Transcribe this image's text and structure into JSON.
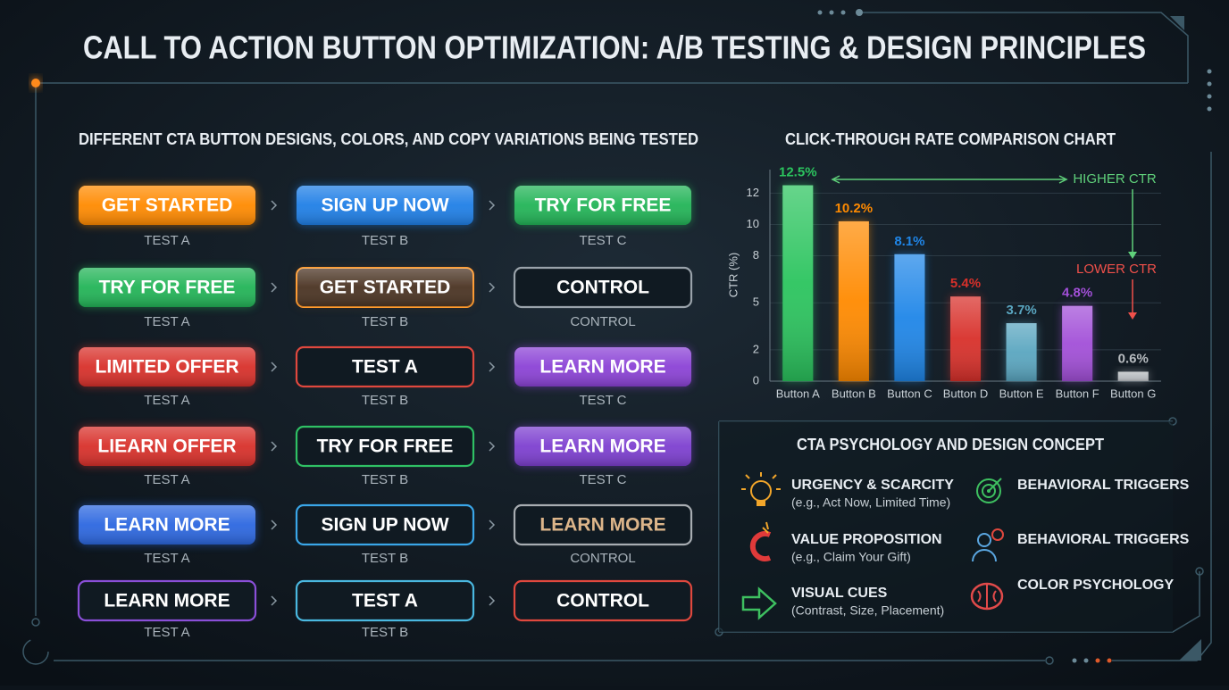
{
  "title": "CALL TO ACTION BUTTON OPTIMIZATION: A/B TESTING & DESIGN PRINCIPLES",
  "ab_tests": {
    "heading": "DIFFERENT CTA BUTTON DESIGNS, COLORS, AND COPY VARIATIONS BEING TESTED",
    "rows": [
      [
        {
          "label": "GET STARTED",
          "caption": "TEST A",
          "variant": "fill",
          "color": "#ff8a00"
        },
        {
          "label": "SIGN UP NOW",
          "caption": "TEST B",
          "variant": "fill",
          "color": "#1f7fe6"
        },
        {
          "label": "TRY FOR FREE",
          "caption": "TEST C",
          "variant": "fill",
          "color": "#22b457"
        }
      ],
      [
        {
          "label": "TRY FOR FREE",
          "caption": "TEST A",
          "variant": "fill",
          "color": "#22b457"
        },
        {
          "label": "GET STARTED",
          "caption": "TEST B",
          "variant": "fill",
          "color": "#4a3322",
          "border": "#ff9a2e"
        },
        {
          "label": "CONTROL",
          "caption": "CONTROL",
          "variant": "outline",
          "color": "#9aa3ab"
        }
      ],
      [
        {
          "label": "LIMITED OFFER",
          "caption": "TEST A",
          "variant": "fill",
          "color": "#d8302a"
        },
        {
          "label": "TEST A",
          "caption": "TEST B",
          "variant": "outline",
          "color": "#e0483e"
        },
        {
          "label": "LEARN MORE",
          "caption": "TEST C",
          "variant": "fill",
          "color": "#8b42d6"
        }
      ],
      [
        {
          "label": "LIEARN OFFER",
          "caption": "TEST A",
          "variant": "fill",
          "color": "#d8302a"
        },
        {
          "label": "TRY FOR FREE",
          "caption": "TEST B",
          "variant": "outline",
          "color": "#2fc064"
        },
        {
          "label": "LEARN MORE",
          "caption": "TEST C",
          "variant": "fill",
          "color": "#7d3fd0"
        }
      ],
      [
        {
          "label": "LEARN MORE",
          "caption": "TEST A",
          "variant": "fill",
          "color": "#2c67e0"
        },
        {
          "label": "SIGN UP NOW",
          "caption": "TEST B",
          "variant": "outline",
          "color": "#3aa6e8"
        },
        {
          "label": "LEARN MORE",
          "caption": "CONTROL",
          "variant": "outline",
          "color": "#a8adb2",
          "text_color": "#dcb58a"
        }
      ],
      [
        {
          "label": "LEARN MORE",
          "caption": "TEST A",
          "variant": "outline",
          "color": "#8a4fd8"
        },
        {
          "label": "TEST A",
          "caption": "TEST B",
          "variant": "outline",
          "color": "#4ab8e0"
        },
        {
          "label": "CONTROL",
          "variant": "outline",
          "color": "#e0483e"
        }
      ]
    ]
  },
  "chart_data": {
    "type": "bar",
    "title": "CLICK-THROUGH RATE COMPARISON CHART",
    "y_label": "CTR (%)",
    "categories": [
      "Button A",
      "Button B",
      "Button C",
      "Button D",
      "Button E",
      "Button F",
      "Button G"
    ],
    "values": [
      12.5,
      10.2,
      8.1,
      5.4,
      3.7,
      4.8,
      0.6
    ],
    "value_labels": [
      "12.5%",
      "10.2%",
      "8.1%",
      "5.4%",
      "3.7%",
      "4.8%",
      "0.6%"
    ],
    "colors": [
      "#2bc45e",
      "#ff8a00",
      "#1f86e8",
      "#d8302a",
      "#5aa6c0",
      "#a24fd8",
      "#b8bcc0"
    ],
    "ylim": [
      0,
      13.5
    ],
    "yticks": [
      0,
      2,
      5,
      8,
      10,
      12
    ],
    "grid": true,
    "annotations": {
      "higher": "HIGHER CTR",
      "lower": "LOWER CTR"
    }
  },
  "psychology": {
    "heading": "CTA PSYCHOLOGY AND DESIGN CONCEPT",
    "items": [
      {
        "title": "URGENCY & SCARCITY",
        "subtitle": "(e.g., Act Now, Limited Time)"
      },
      {
        "title": "VALUE PROPOSITION",
        "subtitle": "(e.g., Claim Your Gift)"
      },
      {
        "title": "VISUAL CUES",
        "subtitle": "(Contrast, Size, Placement)"
      },
      {
        "title": "BEHAVIORAL TRIGGERS"
      },
      {
        "title": "BEHAVIORAL TRIGGERS"
      },
      {
        "title": "COLOR PSYCHOLOGY"
      }
    ]
  }
}
